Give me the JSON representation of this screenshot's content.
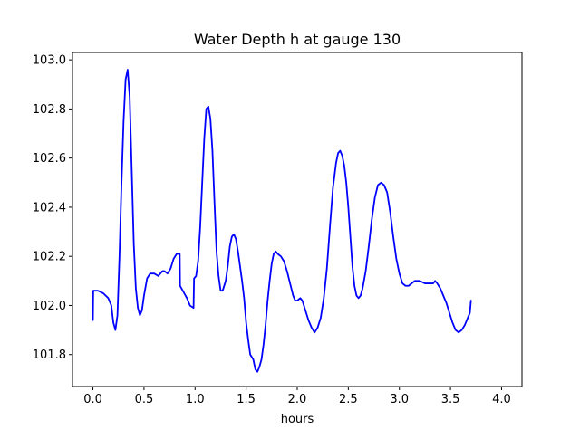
{
  "chart_data": {
    "type": "line",
    "title": "Water Depth h at gauge 130",
    "xlabel": "hours",
    "ylabel": "",
    "xlim": [
      -0.2,
      4.2
    ],
    "ylim": [
      101.67,
      103.03
    ],
    "xticks": [
      0.0,
      0.5,
      1.0,
      1.5,
      2.0,
      2.5,
      3.0,
      3.5,
      4.0
    ],
    "xtick_labels": [
      "0.0",
      "0.5",
      "1.0",
      "1.5",
      "2.0",
      "2.5",
      "3.0",
      "3.5",
      "4.0"
    ],
    "yticks": [
      101.8,
      102.0,
      102.2,
      102.4,
      102.6,
      102.8,
      103.0
    ],
    "ytick_labels": [
      "101.8",
      "102.0",
      "102.2",
      "102.4",
      "102.6",
      "102.8",
      "103.0"
    ],
    "grid": false,
    "series": [
      {
        "color": "#0000ff",
        "points": [
          [
            0.0,
            101.94
          ],
          [
            0.003,
            102.06
          ],
          [
            0.05,
            102.06
          ],
          [
            0.1,
            102.05
          ],
          [
            0.15,
            102.03
          ],
          [
            0.18,
            102.0
          ],
          [
            0.2,
            101.93
          ],
          [
            0.22,
            101.9
          ],
          [
            0.24,
            101.96
          ],
          [
            0.26,
            102.2
          ],
          [
            0.28,
            102.5
          ],
          [
            0.3,
            102.75
          ],
          [
            0.32,
            102.92
          ],
          [
            0.34,
            102.96
          ],
          [
            0.36,
            102.85
          ],
          [
            0.38,
            102.55
          ],
          [
            0.4,
            102.25
          ],
          [
            0.42,
            102.07
          ],
          [
            0.44,
            101.99
          ],
          [
            0.46,
            101.96
          ],
          [
            0.48,
            101.98
          ],
          [
            0.5,
            102.04
          ],
          [
            0.53,
            102.11
          ],
          [
            0.56,
            102.13
          ],
          [
            0.6,
            102.13
          ],
          [
            0.64,
            102.12
          ],
          [
            0.68,
            102.14
          ],
          [
            0.7,
            102.14
          ],
          [
            0.73,
            102.13
          ],
          [
            0.76,
            102.15
          ],
          [
            0.79,
            102.19
          ],
          [
            0.82,
            102.21
          ],
          [
            0.85,
            102.21
          ],
          [
            0.853,
            102.08
          ],
          [
            0.88,
            102.06
          ],
          [
            0.92,
            102.03
          ],
          [
            0.95,
            102.0
          ],
          [
            0.985,
            101.99
          ],
          [
            0.99,
            102.11
          ],
          [
            1.01,
            102.12
          ],
          [
            1.03,
            102.18
          ],
          [
            1.05,
            102.32
          ],
          [
            1.07,
            102.5
          ],
          [
            1.09,
            102.68
          ],
          [
            1.11,
            102.8
          ],
          [
            1.13,
            102.81
          ],
          [
            1.15,
            102.76
          ],
          [
            1.17,
            102.63
          ],
          [
            1.19,
            102.42
          ],
          [
            1.21,
            102.22
          ],
          [
            1.23,
            102.12
          ],
          [
            1.25,
            102.06
          ],
          [
            1.27,
            102.06
          ],
          [
            1.3,
            102.1
          ],
          [
            1.32,
            102.16
          ],
          [
            1.34,
            102.24
          ],
          [
            1.36,
            102.28
          ],
          [
            1.38,
            102.29
          ],
          [
            1.4,
            102.27
          ],
          [
            1.42,
            102.22
          ],
          [
            1.44,
            102.16
          ],
          [
            1.46,
            102.1
          ],
          [
            1.48,
            102.03
          ],
          [
            1.5,
            101.93
          ],
          [
            1.52,
            101.86
          ],
          [
            1.54,
            101.8
          ],
          [
            1.57,
            101.78
          ],
          [
            1.59,
            101.74
          ],
          [
            1.61,
            101.73
          ],
          [
            1.63,
            101.75
          ],
          [
            1.65,
            101.78
          ],
          [
            1.67,
            101.84
          ],
          [
            1.69,
            101.92
          ],
          [
            1.71,
            102.02
          ],
          [
            1.73,
            102.1
          ],
          [
            1.75,
            102.17
          ],
          [
            1.77,
            102.21
          ],
          [
            1.79,
            102.22
          ],
          [
            1.81,
            102.21
          ],
          [
            1.84,
            102.2
          ],
          [
            1.87,
            102.18
          ],
          [
            1.9,
            102.14
          ],
          [
            1.93,
            102.09
          ],
          [
            1.96,
            102.04
          ],
          [
            1.98,
            102.02
          ],
          [
            2.0,
            102.02
          ],
          [
            2.03,
            102.03
          ],
          [
            2.05,
            102.02
          ],
          [
            2.08,
            101.98
          ],
          [
            2.11,
            101.94
          ],
          [
            2.14,
            101.91
          ],
          [
            2.17,
            101.89
          ],
          [
            2.2,
            101.91
          ],
          [
            2.23,
            101.95
          ],
          [
            2.26,
            102.03
          ],
          [
            2.29,
            102.15
          ],
          [
            2.32,
            102.32
          ],
          [
            2.35,
            102.48
          ],
          [
            2.38,
            102.58
          ],
          [
            2.4,
            102.62
          ],
          [
            2.42,
            102.63
          ],
          [
            2.44,
            102.61
          ],
          [
            2.46,
            102.57
          ],
          [
            2.48,
            102.5
          ],
          [
            2.5,
            102.4
          ],
          [
            2.52,
            102.28
          ],
          [
            2.54,
            102.16
          ],
          [
            2.56,
            102.08
          ],
          [
            2.58,
            102.04
          ],
          [
            2.6,
            102.03
          ],
          [
            2.62,
            102.04
          ],
          [
            2.64,
            102.07
          ],
          [
            2.67,
            102.14
          ],
          [
            2.7,
            102.24
          ],
          [
            2.73,
            102.35
          ],
          [
            2.76,
            102.44
          ],
          [
            2.79,
            102.49
          ],
          [
            2.82,
            102.5
          ],
          [
            2.85,
            102.49
          ],
          [
            2.88,
            102.46
          ],
          [
            2.91,
            102.38
          ],
          [
            2.94,
            102.28
          ],
          [
            2.97,
            102.19
          ],
          [
            3.0,
            102.13
          ],
          [
            3.03,
            102.09
          ],
          [
            3.06,
            102.08
          ],
          [
            3.09,
            102.08
          ],
          [
            3.12,
            102.09
          ],
          [
            3.15,
            102.1
          ],
          [
            3.2,
            102.1
          ],
          [
            3.25,
            102.09
          ],
          [
            3.3,
            102.09
          ],
          [
            3.33,
            102.09
          ],
          [
            3.35,
            102.1
          ],
          [
            3.37,
            102.09
          ],
          [
            3.4,
            102.07
          ],
          [
            3.43,
            102.04
          ],
          [
            3.46,
            102.01
          ],
          [
            3.49,
            101.97
          ],
          [
            3.52,
            101.93
          ],
          [
            3.55,
            101.9
          ],
          [
            3.58,
            101.89
          ],
          [
            3.61,
            101.9
          ],
          [
            3.64,
            101.92
          ],
          [
            3.67,
            101.95
          ],
          [
            3.69,
            101.97
          ],
          [
            3.7,
            102.02
          ]
        ]
      }
    ]
  }
}
